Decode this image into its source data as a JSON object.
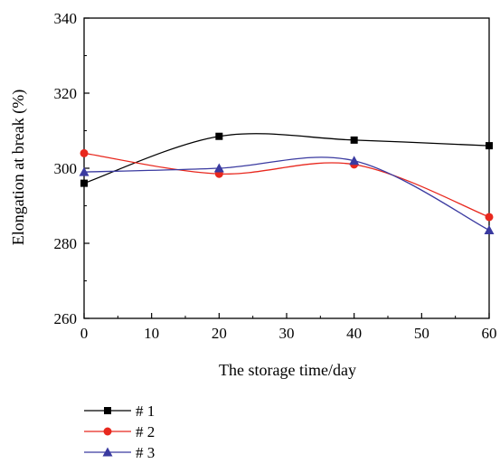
{
  "chart_data": {
    "type": "line",
    "xlabel": "The storage time/day",
    "ylabel": "Elongation at break (%)",
    "xlim": [
      0,
      60
    ],
    "ylim": [
      260,
      340
    ],
    "x_ticks": [
      0,
      10,
      20,
      30,
      40,
      50,
      60
    ],
    "y_ticks": [
      260,
      280,
      300,
      320,
      340
    ],
    "grid": false,
    "legend_position": "bottom-left",
    "x": [
      0,
      20,
      40,
      60
    ],
    "series": [
      {
        "name": "# 1",
        "values": [
          296,
          308.5,
          307.5,
          306
        ],
        "color": "#000000",
        "marker": "square"
      },
      {
        "name": "# 2",
        "values": [
          304,
          298.5,
          301,
          287
        ],
        "color": "#e8281e",
        "marker": "circle"
      },
      {
        "name": "# 3",
        "values": [
          299,
          300,
          302,
          283.5
        ],
        "color": "#3a3aa0",
        "marker": "triangle"
      }
    ]
  }
}
